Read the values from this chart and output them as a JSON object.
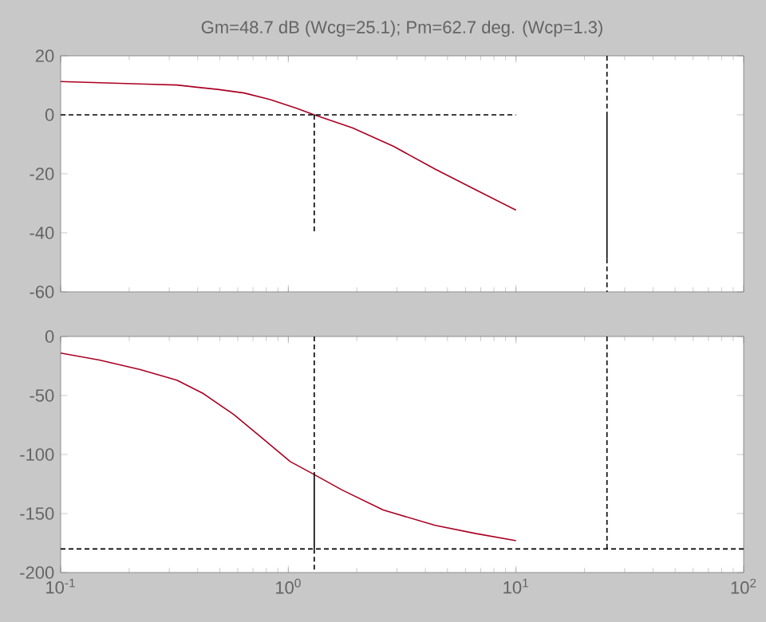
{
  "chart_data": [
    {
      "type": "line",
      "title": "Gm=48.7 dB (Wcg=25.1);  Pm=62.7 deg. (Wcp=1.3)",
      "log": "x",
      "tick_labels": "y",
      "xlim": [
        0.1,
        100
      ],
      "ylim": [
        -60,
        20
      ],
      "xticks": [
        {
          "value": 0.1,
          "label": null
        },
        {
          "value": 1,
          "label": null
        },
        {
          "value": 10,
          "label": null
        },
        {
          "value": 100,
          "label": null
        }
      ],
      "yticks": [
        -60,
        -40,
        -20,
        0,
        20
      ],
      "series": [
        {
          "color": "#aa0022",
          "line_style": "solid",
          "x": [
            0.1,
            0.237,
            0.324,
            0.49,
            0.64,
            0.83,
            1.08,
            1.3,
            1.91,
            2.9,
            4.41,
            6.68,
            10
          ],
          "values": [
            11.3,
            10.4,
            10.1,
            8.6,
            7.4,
            5.2,
            2.3,
            0,
            -4.4,
            -10.7,
            -18.4,
            -25.5,
            -32.3
          ]
        },
        {
          "color": "#000000",
          "line_style": "dashed",
          "x": [
            0.1,
            10
          ],
          "values": [
            0,
            0
          ]
        },
        {
          "color": "#000000",
          "line_style": "dashed",
          "x": [
            1.3,
            1.3
          ],
          "values": [
            0,
            -40
          ]
        },
        {
          "color": "#000000",
          "line_style": "dashed",
          "x": [
            25.1,
            25.1
          ],
          "values": [
            20,
            0
          ]
        },
        {
          "color": "#000000",
          "line_style": "dashed",
          "x": [
            25.1,
            25.1
          ],
          "values": [
            -48.7,
            -60
          ]
        },
        {
          "color": "#000000",
          "line_style": "solid",
          "x": [
            25.1,
            25.1
          ],
          "values": [
            0,
            -48.7
          ]
        }
      ]
    },
    {
      "type": "line",
      "log": "x",
      "xlim": [
        0.1,
        100
      ],
      "ylim": [
        -200,
        0
      ],
      "xticks": [
        {
          "value": 0.1,
          "label": "10$^{-1}$"
        },
        {
          "value": 1,
          "label": "10$^{0}$"
        },
        {
          "value": 10,
          "label": "10$^{1}$"
        },
        {
          "value": 100,
          "label": "10$^{2}$"
        }
      ],
      "yticks": [
        -200,
        -150,
        -100,
        -50,
        0
      ],
      "series": [
        {
          "color": "#aa0022",
          "line_style": "solid",
          "x": [
            0.1,
            0.148,
            0.224,
            0.324,
            0.42,
            0.575,
            0.746,
            1.02,
            1.3,
            1.72,
            2.61,
            4.41,
            6.68,
            10
          ],
          "values": [
            -14,
            -20,
            -28,
            -37,
            -48,
            -66,
            -84,
            -106,
            -117,
            -130,
            -147,
            -160,
            -167,
            -173
          ]
        },
        {
          "color": "#000000",
          "line_style": "dashed",
          "x": [
            0.1,
            100
          ],
          "values": [
            -180,
            -180
          ]
        },
        {
          "color": "#000000",
          "line_style": "dashed",
          "x": [
            1.3,
            1.3
          ],
          "values": [
            0,
            -117
          ]
        },
        {
          "color": "#000000",
          "line_style": "dashed",
          "x": [
            1.3,
            1.3
          ],
          "values": [
            -180,
            -200
          ]
        },
        {
          "color": "#000000",
          "line_style": "solid",
          "x": [
            1.3,
            1.3
          ],
          "values": [
            -117,
            -180
          ]
        },
        {
          "color": "#000000",
          "line_style": "dashed",
          "x": [
            25.1,
            25.1
          ],
          "values": [
            0,
            -180
          ]
        }
      ]
    }
  ]
}
